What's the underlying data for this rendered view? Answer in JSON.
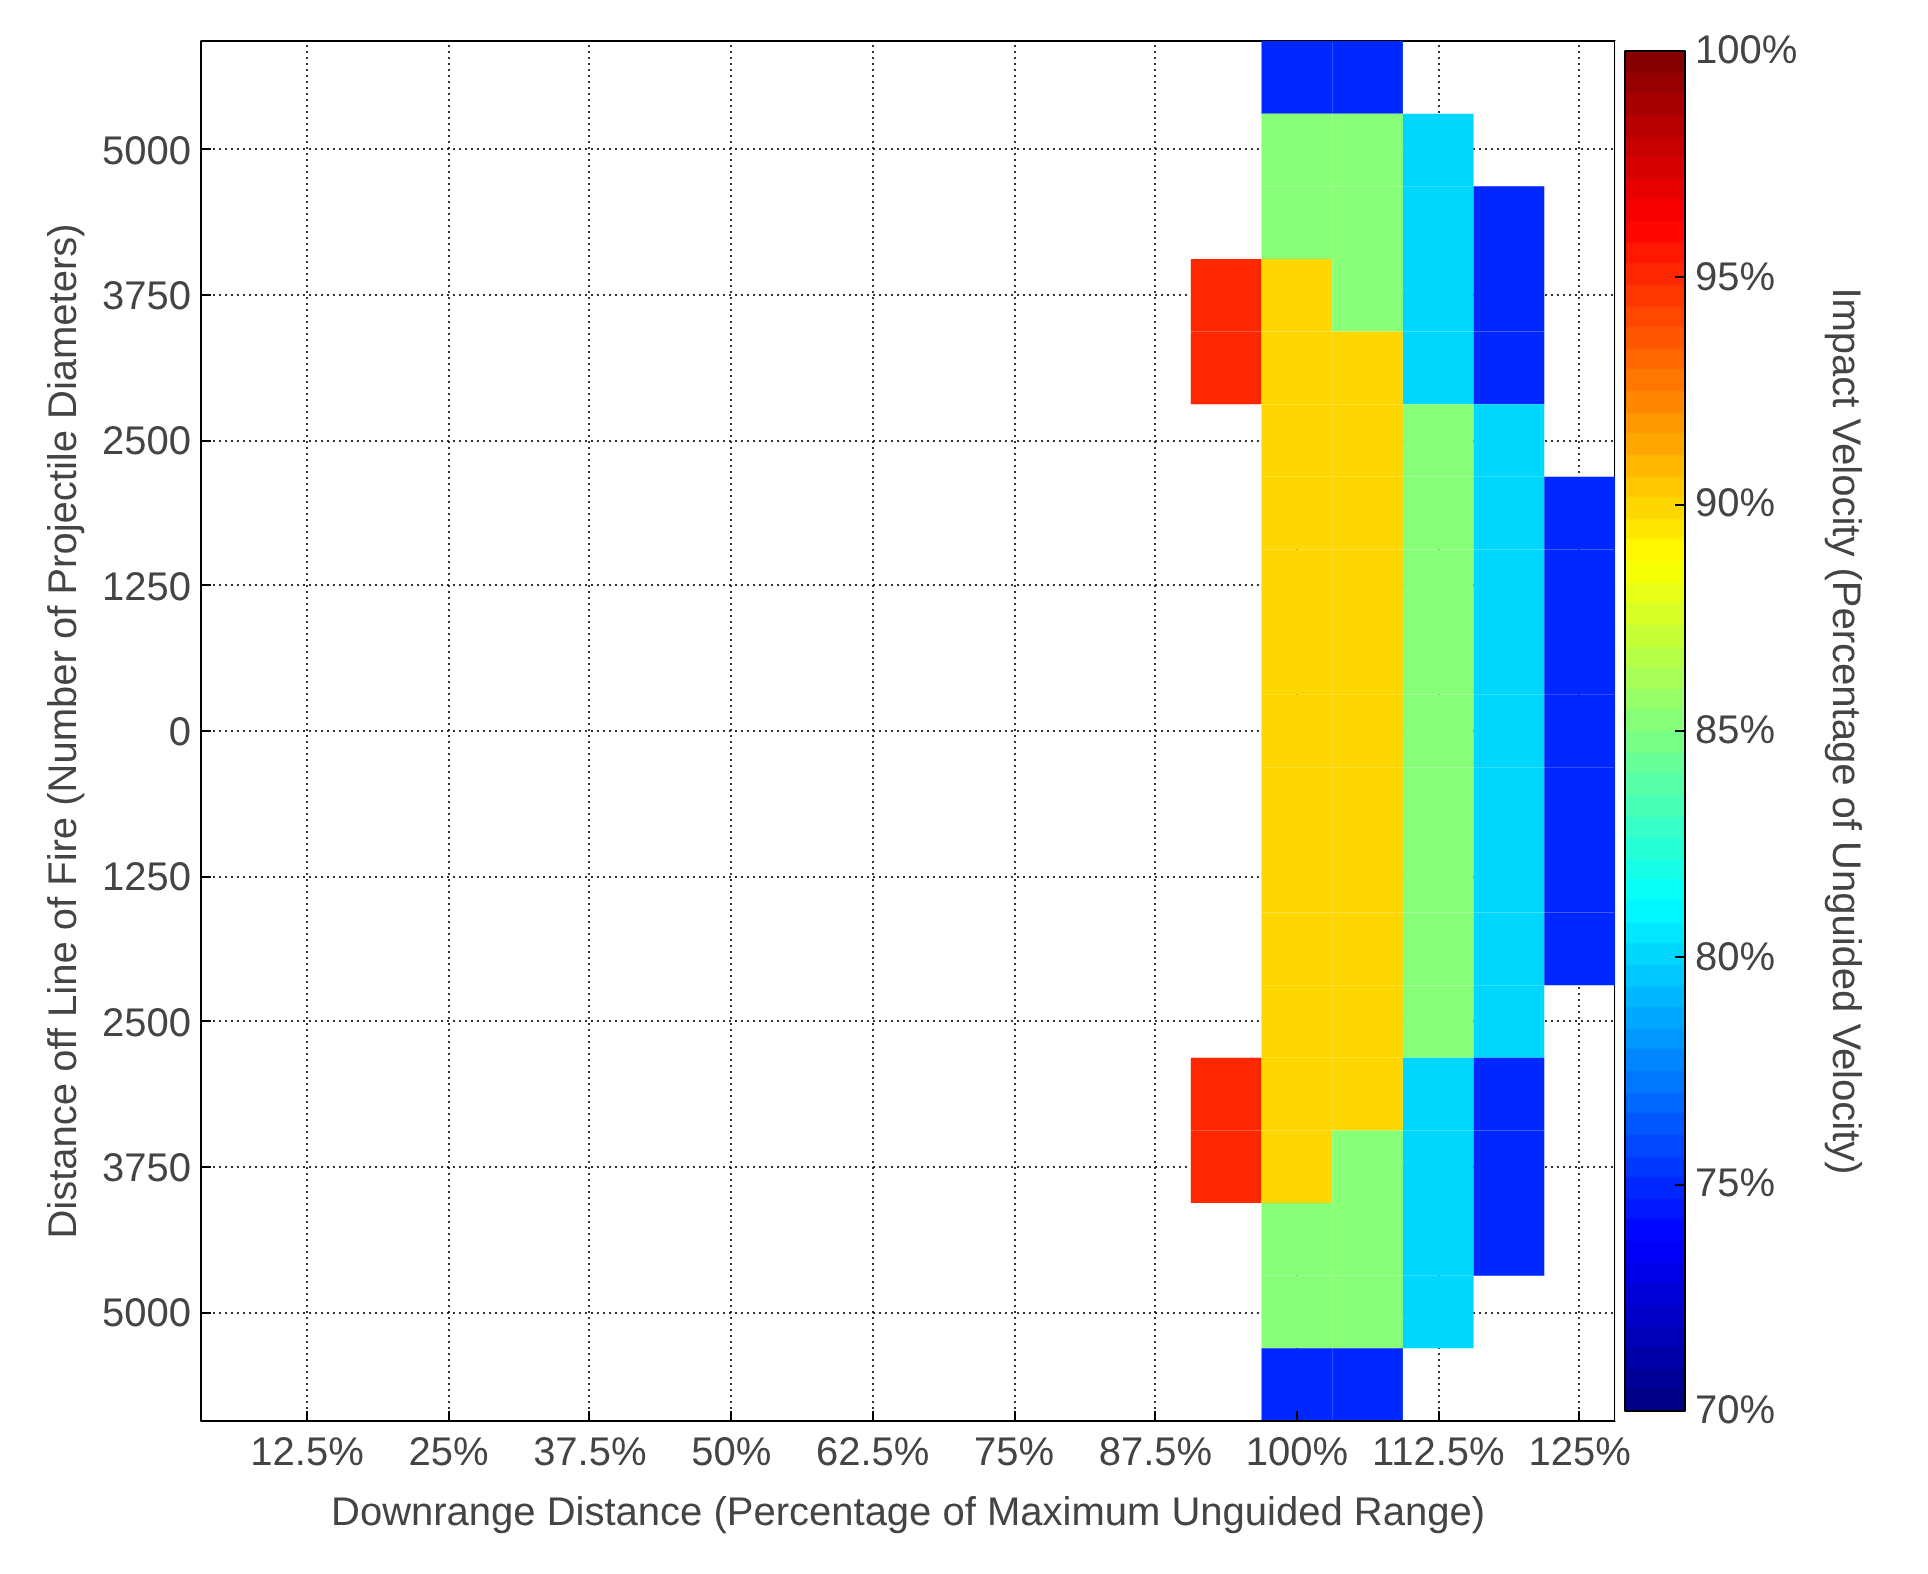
{
  "chart_data": {
    "type": "heatmap",
    "xlabel": "Downrange Distance (Percentage of Maximum Unguided Range)",
    "ylabel": "Distance off Line of Fire (Number of Projectile Diameters)",
    "clabel": "Impact Velocity (Percentage of Unguided Velocity)",
    "categories": [
      null,
      "12.5%",
      null,
      "25%",
      null,
      "37.5%",
      null,
      "50%",
      null,
      "62.5%",
      null,
      "75%",
      null,
      "87.5%",
      null,
      "100%",
      null,
      "112.5%",
      null,
      "125%"
    ],
    "y_categories": [
      null,
      "5000",
      null,
      "3750",
      null,
      "2500",
      null,
      "1250",
      null,
      "0",
      null,
      "1250",
      null,
      "2500",
      null,
      "3750",
      null,
      "5000",
      null
    ],
    "cells": [
      [
        null,
        null,
        null,
        null,
        null,
        null,
        null,
        null,
        null,
        null,
        null,
        null,
        null,
        null,
        null,
        75,
        75,
        null,
        null,
        null
      ],
      [
        null,
        null,
        null,
        null,
        null,
        null,
        null,
        null,
        null,
        null,
        null,
        null,
        null,
        null,
        null,
        85,
        85,
        80,
        null,
        null
      ],
      [
        null,
        null,
        null,
        null,
        null,
        null,
        null,
        null,
        null,
        null,
        null,
        null,
        null,
        null,
        null,
        85,
        85,
        80,
        75,
        null
      ],
      [
        null,
        null,
        null,
        null,
        null,
        null,
        null,
        null,
        null,
        null,
        null,
        null,
        null,
        null,
        95,
        90,
        85,
        80,
        75,
        null
      ],
      [
        null,
        null,
        null,
        null,
        null,
        null,
        null,
        null,
        null,
        null,
        null,
        null,
        null,
        null,
        95,
        90,
        90,
        80,
        75,
        null
      ],
      [
        null,
        null,
        null,
        null,
        null,
        null,
        null,
        null,
        null,
        null,
        null,
        null,
        null,
        null,
        null,
        90,
        90,
        85,
        80,
        null
      ],
      [
        null,
        null,
        null,
        null,
        null,
        null,
        null,
        null,
        null,
        null,
        null,
        null,
        null,
        null,
        null,
        90,
        90,
        85,
        80,
        75
      ],
      [
        null,
        null,
        null,
        null,
        null,
        null,
        null,
        null,
        null,
        null,
        null,
        null,
        null,
        null,
        null,
        90,
        90,
        85,
        80,
        75
      ],
      [
        null,
        null,
        null,
        null,
        null,
        null,
        null,
        null,
        null,
        null,
        null,
        null,
        null,
        null,
        null,
        90,
        90,
        85,
        80,
        75
      ],
      [
        null,
        null,
        null,
        null,
        null,
        null,
        null,
        null,
        null,
        null,
        null,
        null,
        null,
        null,
        null,
        90,
        90,
        85,
        80,
        75
      ],
      [
        null,
        null,
        null,
        null,
        null,
        null,
        null,
        null,
        null,
        null,
        null,
        null,
        null,
        null,
        null,
        90,
        90,
        85,
        80,
        75
      ],
      [
        null,
        null,
        null,
        null,
        null,
        null,
        null,
        null,
        null,
        null,
        null,
        null,
        null,
        null,
        null,
        90,
        90,
        85,
        80,
        75
      ],
      [
        null,
        null,
        null,
        null,
        null,
        null,
        null,
        null,
        null,
        null,
        null,
        null,
        null,
        null,
        null,
        90,
        90,
        85,
        80,
        75
      ],
      [
        null,
        null,
        null,
        null,
        null,
        null,
        null,
        null,
        null,
        null,
        null,
        null,
        null,
        null,
        null,
        90,
        90,
        85,
        80,
        null
      ],
      [
        null,
        null,
        null,
        null,
        null,
        null,
        null,
        null,
        null,
        null,
        null,
        null,
        null,
        null,
        95,
        90,
        90,
        80,
        75,
        null
      ],
      [
        null,
        null,
        null,
        null,
        null,
        null,
        null,
        null,
        null,
        null,
        null,
        null,
        null,
        null,
        95,
        90,
        85,
        80,
        75,
        null
      ],
      [
        null,
        null,
        null,
        null,
        null,
        null,
        null,
        null,
        null,
        null,
        null,
        null,
        null,
        null,
        null,
        85,
        85,
        80,
        75,
        null
      ],
      [
        null,
        null,
        null,
        null,
        null,
        null,
        null,
        null,
        null,
        null,
        null,
        null,
        null,
        null,
        null,
        85,
        85,
        80,
        null,
        null
      ],
      [
        null,
        null,
        null,
        null,
        null,
        null,
        null,
        null,
        null,
        null,
        null,
        null,
        null,
        null,
        null,
        75,
        75,
        null,
        null,
        null
      ]
    ],
    "clim": [
      70,
      100
    ],
    "cticks": [
      {
        "value": 70,
        "label": "70%"
      },
      {
        "value": 75,
        "label": "75%"
      },
      {
        "value": 80,
        "label": "80%"
      },
      {
        "value": 85,
        "label": "85%"
      },
      {
        "value": 90,
        "label": "90%"
      },
      {
        "value": 95,
        "label": "95%"
      },
      {
        "value": 100,
        "label": "100%"
      }
    ],
    "grid": true
  }
}
